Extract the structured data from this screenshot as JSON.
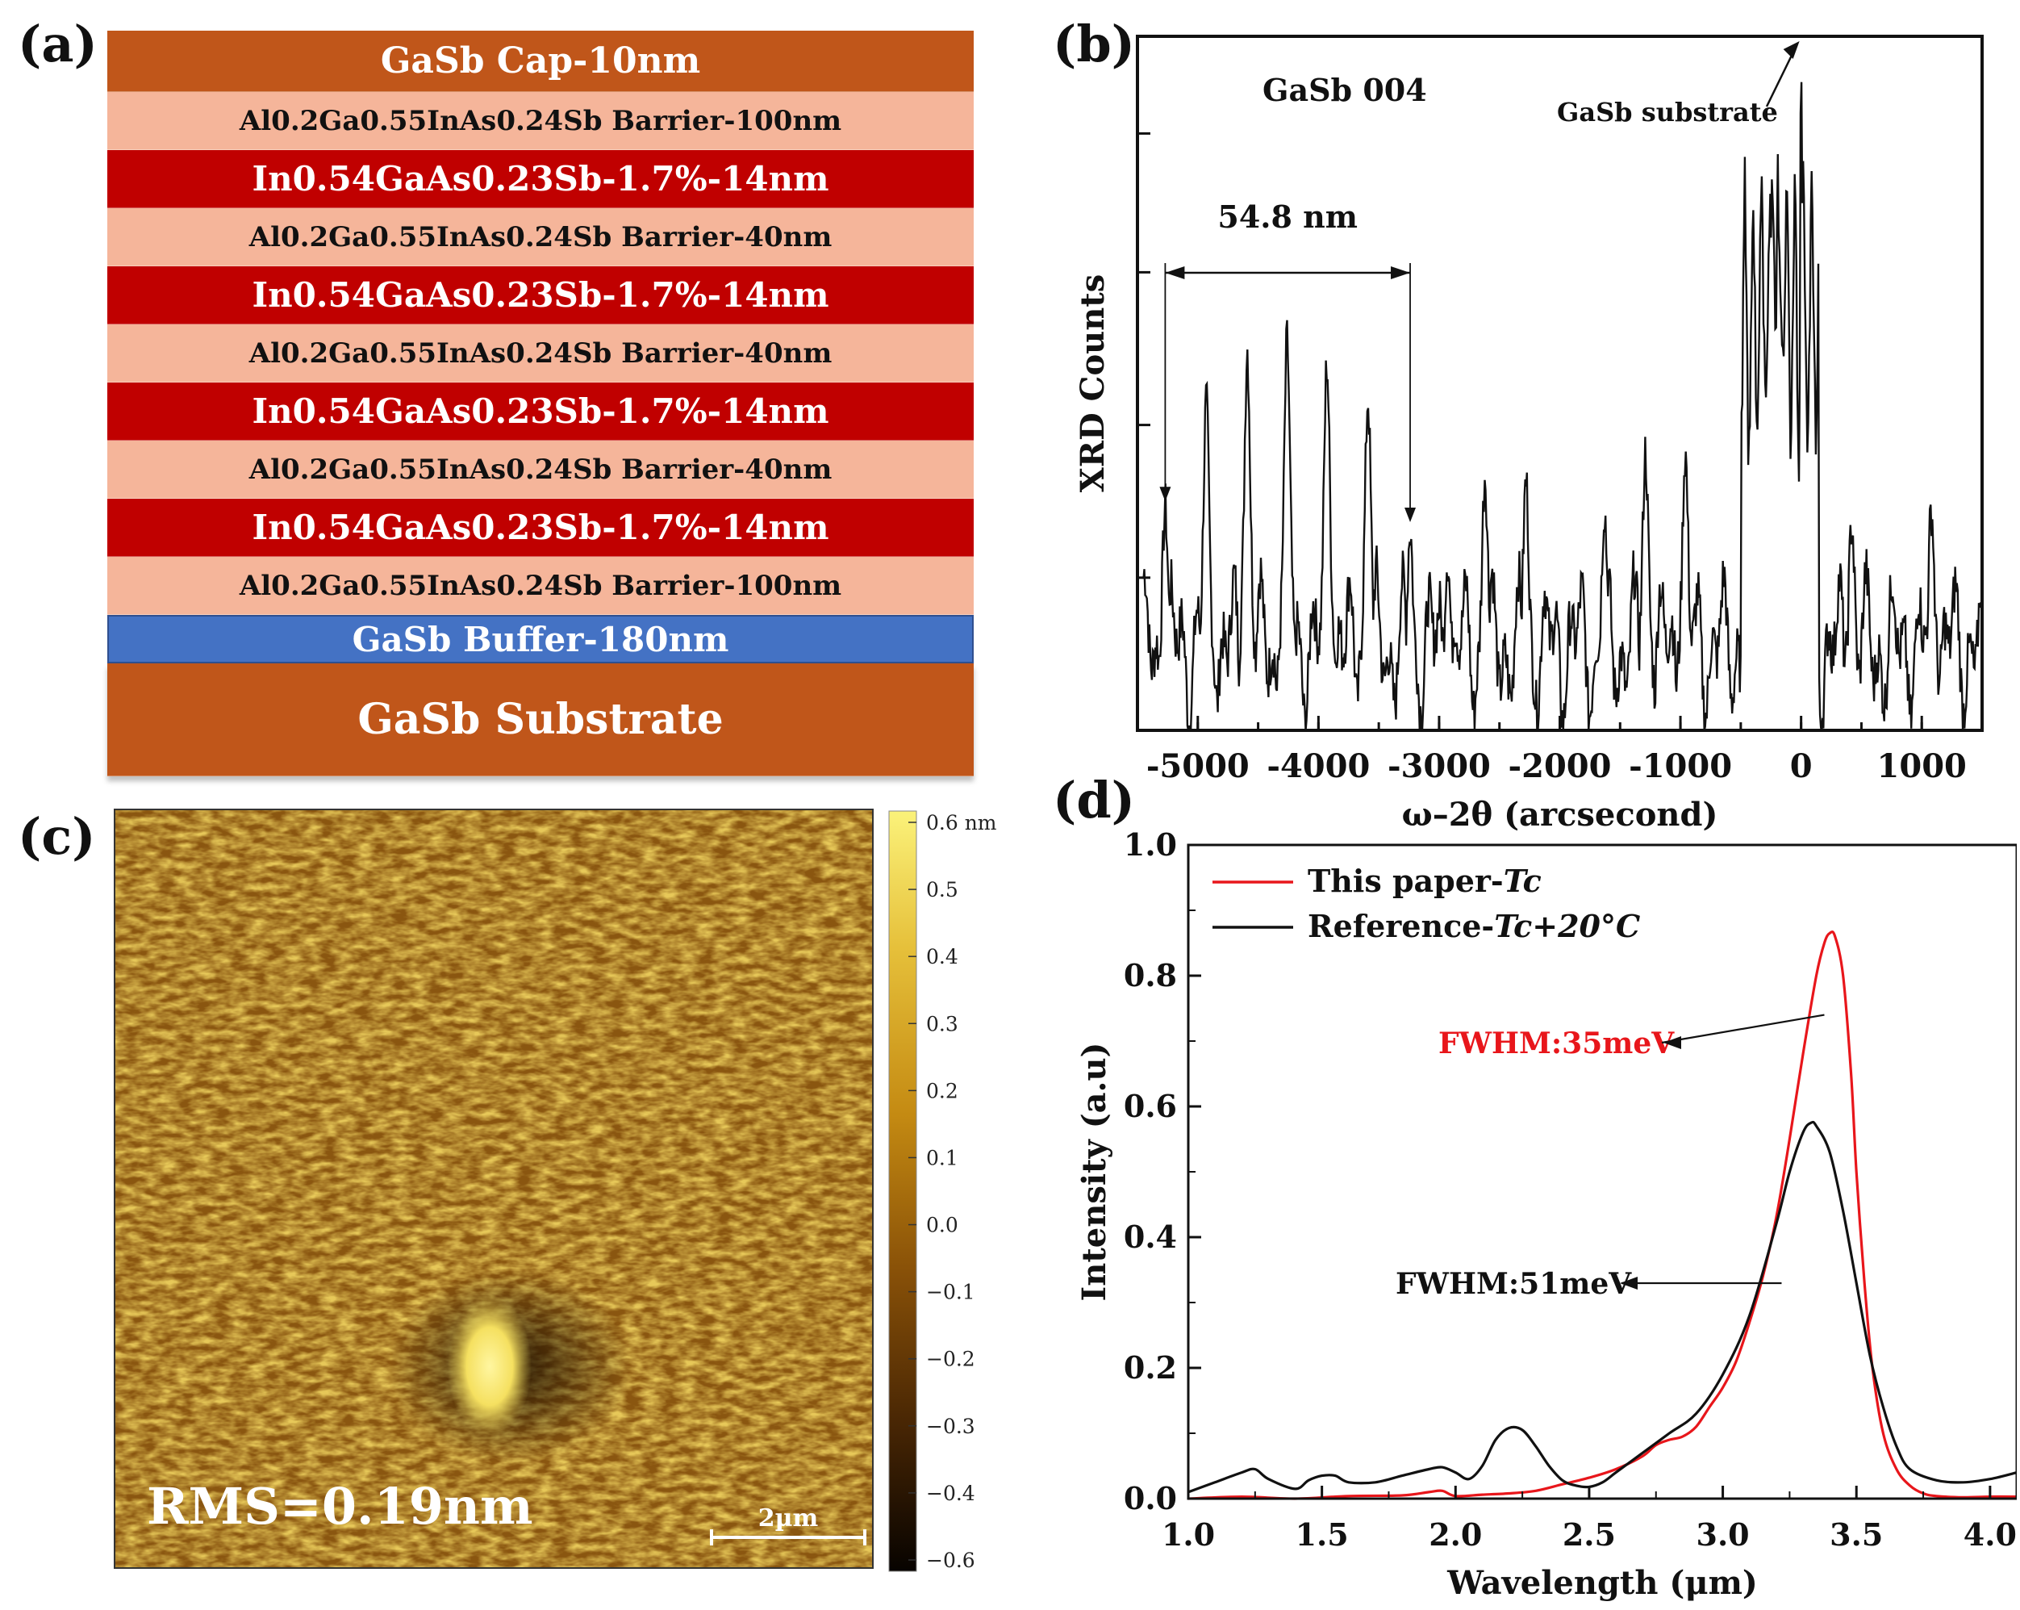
{
  "panels": {
    "a": {
      "label": "(a)",
      "layers": [
        {
          "name": "cap",
          "text": "GaSb Cap-10nm",
          "color": "#c0561a",
          "text_color": "#ffffff",
          "kind": "cap"
        },
        {
          "name": "barrier",
          "text": "Al0.2Ga0.55InAs0.24Sb Barrier-100nm",
          "color": "#f5b59a",
          "text_color": "#111111",
          "kind": "barrier"
        },
        {
          "name": "well",
          "text": "In0.54GaAs0.23Sb-1.7%-14nm",
          "color": "#c00000",
          "text_color": "#ffffff",
          "kind": "well"
        },
        {
          "name": "barrier",
          "text": "Al0.2Ga0.55InAs0.24Sb Barrier-40nm",
          "color": "#f5b59a",
          "text_color": "#111111",
          "kind": "barrier"
        },
        {
          "name": "well",
          "text": "In0.54GaAs0.23Sb-1.7%-14nm",
          "color": "#c00000",
          "text_color": "#ffffff",
          "kind": "well"
        },
        {
          "name": "barrier",
          "text": "Al0.2Ga0.55InAs0.24Sb Barrier-40nm",
          "color": "#f5b59a",
          "text_color": "#111111",
          "kind": "barrier"
        },
        {
          "name": "well",
          "text": "In0.54GaAs0.23Sb-1.7%-14nm",
          "color": "#c00000",
          "text_color": "#ffffff",
          "kind": "well"
        },
        {
          "name": "barrier",
          "text": "Al0.2Ga0.55InAs0.24Sb Barrier-40nm",
          "color": "#f5b59a",
          "text_color": "#111111",
          "kind": "barrier"
        },
        {
          "name": "well",
          "text": "In0.54GaAs0.23Sb-1.7%-14nm",
          "color": "#c00000",
          "text_color": "#ffffff",
          "kind": "well"
        },
        {
          "name": "barrier",
          "text": "Al0.2Ga0.55InAs0.24Sb Barrier-100nm",
          "color": "#f5b59a",
          "text_color": "#111111",
          "kind": "barrier"
        },
        {
          "name": "buffer",
          "text": "GaSb Buffer-180nm",
          "color": "#4472c4",
          "text_color": "#ffffff",
          "kind": "buffer"
        },
        {
          "name": "substrate",
          "text": "GaSb Substrate",
          "color": "#c0561a",
          "text_color": "#ffffff",
          "kind": "substrate"
        }
      ]
    },
    "b": {
      "label": "(b)"
    },
    "c": {
      "label": "(c)",
      "rms": "RMS=0.19nm",
      "scalebar": "2µm",
      "colorbar_ticks": [
        "0.6 nm",
        "0.5",
        "0.4",
        "0.3",
        "0.2",
        "0.1",
        "0.0",
        "−0.1",
        "−0.2",
        "−0.3",
        "−0.4",
        "−0.6"
      ]
    },
    "d": {
      "label": "(d)"
    }
  },
  "chart_data": [
    {
      "type": "line",
      "panel": "b",
      "title": "",
      "xlabel": "ω–2θ (arcsecond)",
      "ylabel": "XRD Counts",
      "xlim": [
        -5500,
        1500
      ],
      "ylim": [
        0,
        1
      ],
      "xticks": [
        -5000,
        -4000,
        -3000,
        -2000,
        -1000,
        0,
        1000
      ],
      "yticks_labeled": false,
      "annotations": [
        "GaSb 004",
        "GaSb substrate",
        "54.8 nm"
      ],
      "period_marker": [
        -5270,
        -3240
      ],
      "satellite_peaks": [
        {
          "x": -5270,
          "y": 0.32
        },
        {
          "x": -4930,
          "y": 0.47
        },
        {
          "x": -4590,
          "y": 0.55
        },
        {
          "x": -4260,
          "y": 0.56
        },
        {
          "x": -3930,
          "y": 0.53
        },
        {
          "x": -3590,
          "y": 0.48
        },
        {
          "x": -3240,
          "y": 0.29
        },
        {
          "x": -2930,
          "y": 0.25
        },
        {
          "x": -2620,
          "y": 0.37
        },
        {
          "x": -2280,
          "y": 0.36
        },
        {
          "x": -1630,
          "y": 0.32
        },
        {
          "x": -1290,
          "y": 0.4
        },
        {
          "x": -960,
          "y": 0.4
        },
        {
          "x": -240,
          "y": 0.76
        },
        {
          "x": 0,
          "y": 1.0
        },
        {
          "x": 420,
          "y": 0.3
        },
        {
          "x": 1080,
          "y": 0.32
        }
      ]
    },
    {
      "type": "line",
      "panel": "d",
      "title": "",
      "xlabel": "Wavelength (μm)",
      "ylabel": "Intensity (a.u)",
      "xlim": [
        1.0,
        4.1
      ],
      "ylim": [
        0.0,
        1.0
      ],
      "xticks": [
        "1.0",
        "1.5",
        "2.0",
        "2.5",
        "3.0",
        "3.5",
        "4.0"
      ],
      "yticks": [
        "0.0",
        "0.2",
        "0.4",
        "0.6",
        "0.8",
        "1.0"
      ],
      "legend_position": "top-left",
      "series": [
        {
          "name": "This paper-Tc",
          "legend_plain": "This paper-",
          "legend_italic": "Tc",
          "color": "#e8161b",
          "annotation": "FWHM:35meV",
          "x": [
            1.0,
            1.2,
            1.4,
            1.6,
            1.8,
            1.9,
            1.95,
            2.0,
            2.1,
            2.2,
            2.3,
            2.4,
            2.5,
            2.6,
            2.7,
            2.75,
            2.8,
            2.85,
            2.9,
            2.95,
            3.0,
            3.05,
            3.1,
            3.15,
            3.2,
            3.25,
            3.3,
            3.35,
            3.38,
            3.4,
            3.42,
            3.45,
            3.48,
            3.5,
            3.53,
            3.56,
            3.6,
            3.65,
            3.7,
            3.75,
            3.8,
            3.9,
            4.0,
            4.1
          ],
          "y": [
            0.0,
            0.003,
            0.0,
            0.004,
            0.005,
            0.01,
            0.012,
            0.004,
            0.006,
            0.008,
            0.012,
            0.022,
            0.032,
            0.045,
            0.065,
            0.082,
            0.09,
            0.095,
            0.11,
            0.14,
            0.17,
            0.21,
            0.27,
            0.34,
            0.43,
            0.55,
            0.68,
            0.8,
            0.85,
            0.865,
            0.86,
            0.8,
            0.65,
            0.5,
            0.33,
            0.2,
            0.1,
            0.045,
            0.02,
            0.008,
            0.004,
            0.002,
            0.003,
            0.003
          ]
        },
        {
          "name": "Reference-Tc+20°C",
          "legend_plain": "Reference-",
          "legend_italic": "Tc+20°C",
          "color": "#111111",
          "annotation": "FWHM:51meV",
          "x": [
            1.0,
            1.1,
            1.2,
            1.25,
            1.3,
            1.4,
            1.45,
            1.5,
            1.55,
            1.6,
            1.7,
            1.8,
            1.9,
            1.95,
            2.0,
            2.05,
            2.1,
            2.15,
            2.2,
            2.25,
            2.3,
            2.35,
            2.4,
            2.45,
            2.5,
            2.55,
            2.6,
            2.7,
            2.8,
            2.9,
            3.0,
            3.1,
            3.2,
            3.25,
            3.3,
            3.33,
            3.35,
            3.4,
            3.45,
            3.5,
            3.55,
            3.6,
            3.65,
            3.7,
            3.8,
            3.9,
            4.0,
            4.1
          ],
          "y": [
            0.01,
            0.025,
            0.04,
            0.045,
            0.03,
            0.015,
            0.028,
            0.035,
            0.035,
            0.025,
            0.025,
            0.035,
            0.045,
            0.048,
            0.04,
            0.03,
            0.05,
            0.09,
            0.108,
            0.105,
            0.08,
            0.05,
            0.028,
            0.02,
            0.018,
            0.025,
            0.04,
            0.07,
            0.1,
            0.13,
            0.19,
            0.28,
            0.42,
            0.5,
            0.56,
            0.575,
            0.57,
            0.53,
            0.44,
            0.33,
            0.22,
            0.14,
            0.08,
            0.045,
            0.028,
            0.025,
            0.03,
            0.04
          ]
        }
      ]
    }
  ]
}
